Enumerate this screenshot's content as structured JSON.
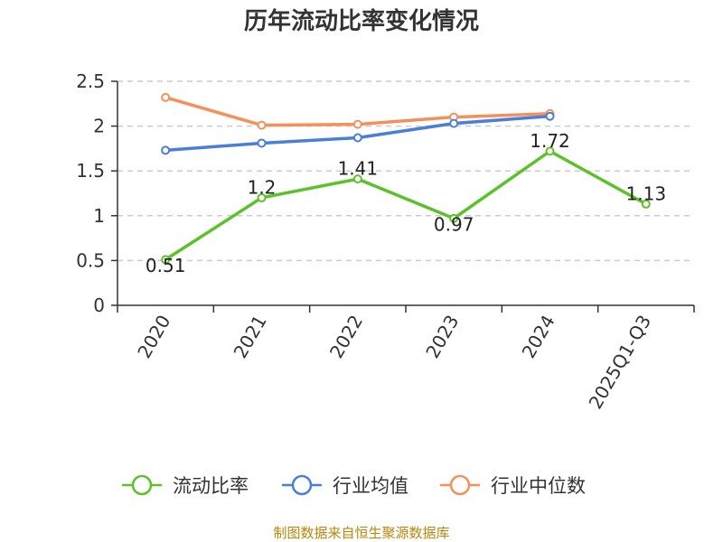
{
  "chart_data": {
    "type": "line",
    "title": "历年流动比率变化情况",
    "categories": [
      "2020",
      "2021",
      "2022",
      "2023",
      "2024",
      "2025Q1-Q3"
    ],
    "ylim": [
      0,
      2.5
    ],
    "yticks": [
      "0",
      "0.5",
      "1",
      "1.5",
      "2",
      "2.5"
    ],
    "grid": true,
    "legend_position": "bottom",
    "series": [
      {
        "name": "流动比率",
        "color": "#5cc22a",
        "values": [
          0.51,
          1.2,
          1.41,
          0.97,
          1.72,
          1.13
        ],
        "labels": [
          "0.51",
          "1.2",
          "1.41",
          "0.97",
          "1.72",
          "1.13"
        ]
      },
      {
        "name": "行业均值",
        "color": "#4a7fd9",
        "values": [
          1.73,
          1.81,
          1.87,
          2.03,
          2.11,
          null
        ]
      },
      {
        "name": "行业中位数",
        "color": "#f5905a",
        "values": [
          2.32,
          2.01,
          2.02,
          2.1,
          2.14,
          null
        ]
      }
    ],
    "source": "制图数据来自恒生聚源数据库"
  }
}
